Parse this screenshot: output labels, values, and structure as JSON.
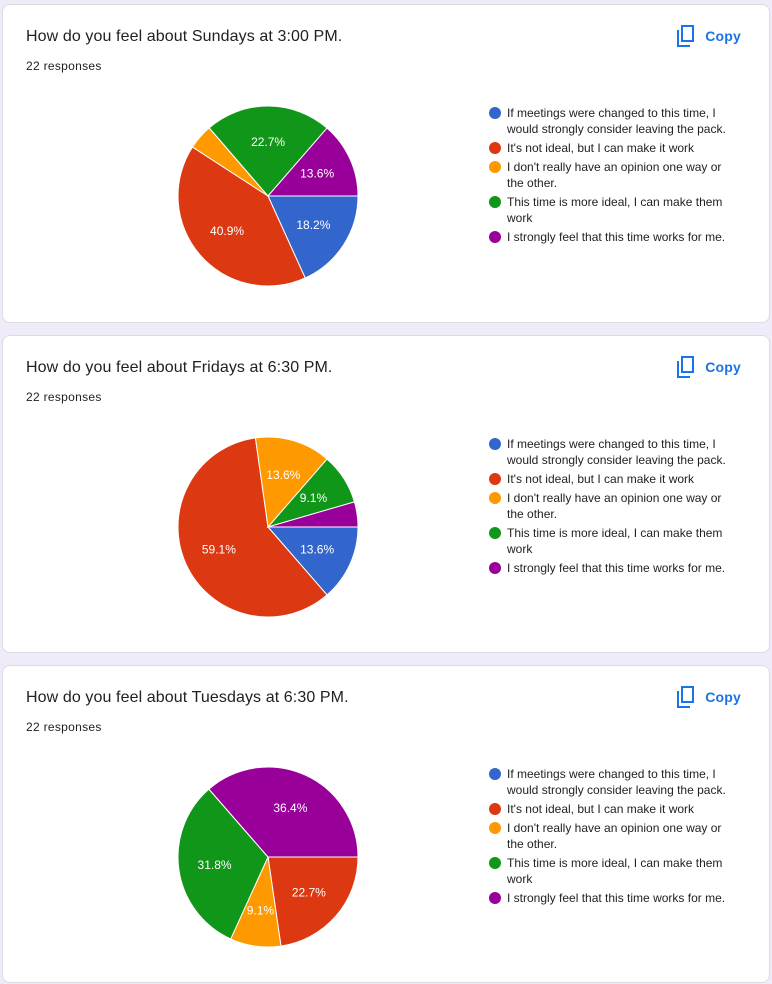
{
  "copy_label": "Copy",
  "copy_icon": "copy-icon",
  "colors": [
    "#3366cc",
    "#dc3912",
    "#ff9900",
    "#109618",
    "#990099"
  ],
  "legend_labels": [
    "If meetings were changed to this time, I would strongly consider leaving the pack.",
    "It's not ideal, but I can make it work",
    "I don't really have an opinion one way or the other.",
    "This time is more ideal, I can make them work",
    "I strongly feel that this time works for me."
  ],
  "cards": [
    {
      "title": "How do you feel about Sundays at 3:00 PM.",
      "responses": "22 responses"
    },
    {
      "title": "How do you feel about Fridays at 6:30 PM.",
      "responses": "22 responses"
    },
    {
      "title": "How do you feel about Tuesdays at 6:30 PM.",
      "responses": "22 responses"
    }
  ],
  "chart_data": [
    {
      "type": "pie",
      "categories": [
        "If meetings were changed to this time, I would strongly consider leaving the pack.",
        "It's not ideal, but I can make it work",
        "I don't really have an opinion one way or the other.",
        "This time is more ideal, I can make them work",
        "I strongly feel that this time works for me."
      ],
      "values": [
        18.2,
        40.9,
        4.5,
        22.7,
        13.6
      ],
      "labels": [
        "18.2%",
        "40.9%",
        "",
        "22.7%",
        "13.6%"
      ],
      "legend": "right"
    },
    {
      "type": "pie",
      "categories": [
        "If meetings were changed to this time, I would strongly consider leaving the pack.",
        "It's not ideal, but I can make it work",
        "I don't really have an opinion one way or the other.",
        "This time is more ideal, I can make them work",
        "I strongly feel that this time works for me."
      ],
      "values": [
        13.6,
        59.1,
        13.6,
        9.1,
        4.5
      ],
      "labels": [
        "13.6%",
        "59.1%",
        "13.6%",
        "9.1%",
        ""
      ],
      "legend": "right"
    },
    {
      "type": "pie",
      "categories": [
        "If meetings were changed to this time, I would strongly consider leaving the pack.",
        "It's not ideal, but I can make it work",
        "I don't really have an opinion one way or the other.",
        "This time is more ideal, I can make them work",
        "I strongly feel that this time works for me."
      ],
      "values": [
        0,
        22.7,
        9.1,
        31.8,
        36.4
      ],
      "labels": [
        "",
        "22.7%",
        "9.1%",
        "31.8%",
        "36.4%"
      ],
      "legend": "right"
    }
  ]
}
